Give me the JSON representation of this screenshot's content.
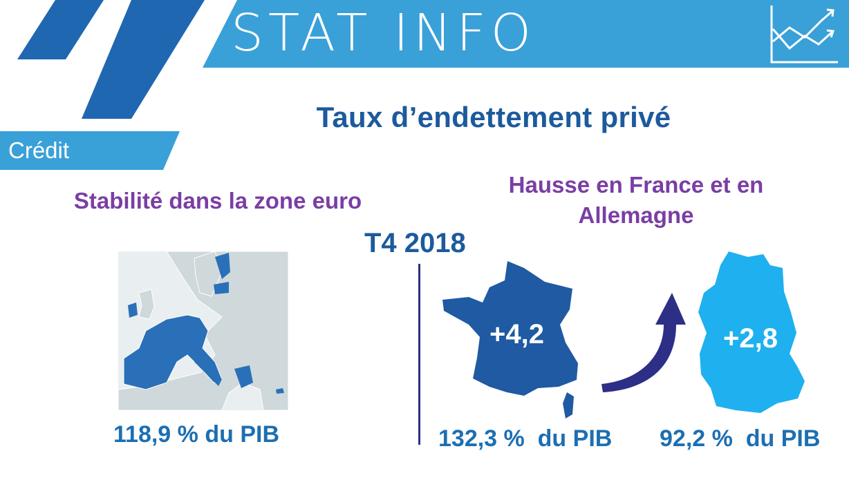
{
  "header": {
    "title": "STAT INFO",
    "category": "Crédit",
    "icon": "line-chart-up-icon",
    "colors": {
      "banner_light": "#3aa0d8",
      "banner_dark": "#1f67b0"
    }
  },
  "main_title": "Taux d’endettement privé",
  "left_panel": {
    "subtitle": "Stabilité dans la zone euro",
    "stat": "118,9 % du PIB",
    "map_icon": "euro-area-map"
  },
  "period": "T4 2018",
  "right_panel": {
    "subtitle": "Hausse en France et en Allemagne",
    "france": {
      "change": "+4,2",
      "stat": "132,3 %  du PIB",
      "map_icon": "france-map",
      "color": "#1f5aa3"
    },
    "germany": {
      "change": "+2,8",
      "stat": "92,2 %  du PIB",
      "map_icon": "germany-map",
      "color": "#1fb0ef"
    },
    "arrow_icon": "curved-arrow-up-icon"
  },
  "colors": {
    "title": "#1c5a9c",
    "subtitle": "#7a3ea4",
    "stat": "#1c6fb2",
    "divider": "#2d2f86"
  }
}
